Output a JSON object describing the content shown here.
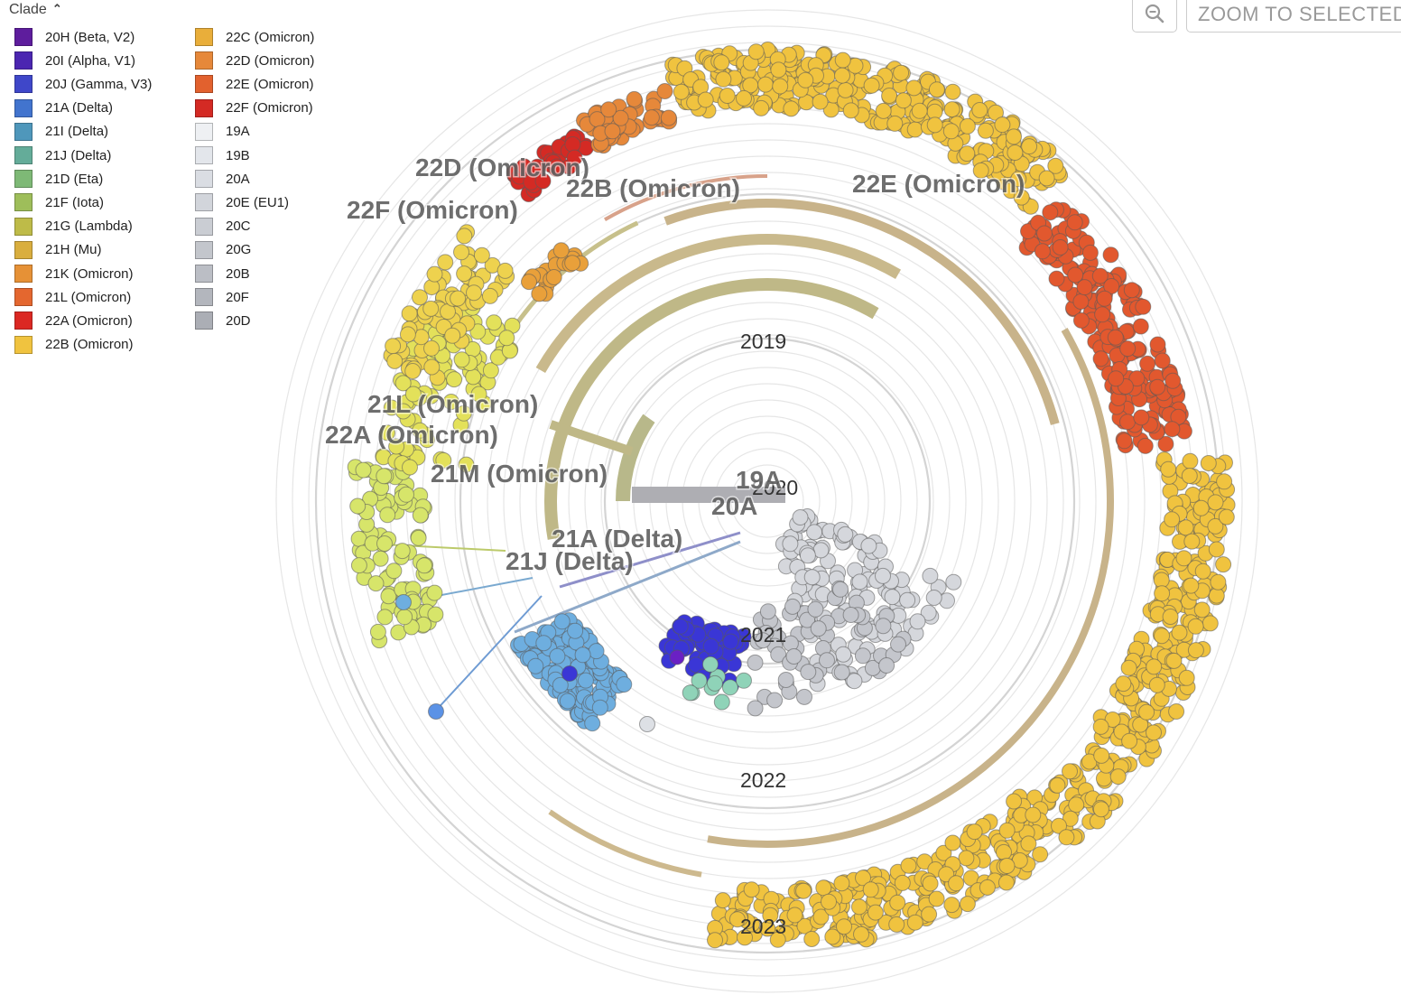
{
  "legend": {
    "title": "Clade",
    "columns": [
      [
        {
          "label": "20H (Beta, V2)",
          "color": "#5E1D9D"
        },
        {
          "label": "20I (Alpha, V1)",
          "color": "#4B26B1"
        },
        {
          "label": "20J (Gamma, V3)",
          "color": "#3F47C9"
        },
        {
          "label": "21A (Delta)",
          "color": "#4274CE"
        },
        {
          "label": "21I (Delta)",
          "color": "#4F97BB"
        },
        {
          "label": "21J (Delta)",
          "color": "#64AC99"
        },
        {
          "label": "21D (Eta)",
          "color": "#7EB976"
        },
        {
          "label": "21F (Iota)",
          "color": "#9EBE5A"
        },
        {
          "label": "21G (Lambda)",
          "color": "#BEBB48"
        },
        {
          "label": "21H (Mu)",
          "color": "#D9AE3E"
        },
        {
          "label": "21K (Omicron)",
          "color": "#E69136"
        },
        {
          "label": "21L (Omicron)",
          "color": "#E4672F"
        },
        {
          "label": "22A (Omicron)",
          "color": "#DB2823"
        },
        {
          "label": "22B (Omicron)",
          "color": "#F0C33F"
        }
      ],
      [
        {
          "label": "22C (Omicron)",
          "color": "#E9AE3A"
        },
        {
          "label": "22D (Omicron)",
          "color": "#E6883A"
        },
        {
          "label": "22E (Omicron)",
          "color": "#E2612E"
        },
        {
          "label": "22F (Omicron)",
          "color": "#D42A24"
        },
        {
          "label": "19A",
          "color": "#EEF0F3"
        },
        {
          "label": "19B",
          "color": "#E3E6EB"
        },
        {
          "label": "20A",
          "color": "#DADDE3"
        },
        {
          "label": "20E (EU1)",
          "color": "#D2D5DB"
        },
        {
          "label": "20C",
          "color": "#CACDD3"
        },
        {
          "label": "20G",
          "color": "#C3C6CC"
        },
        {
          "label": "20B",
          "color": "#BBBEC5"
        },
        {
          "label": "20F",
          "color": "#B3B6BD"
        },
        {
          "label": "20D",
          "color": "#ABAEB5"
        }
      ]
    ]
  },
  "toolbar": {
    "zoom_icon": "zoom-icon",
    "zoom_selected_label": "ZOOM TO SELECTED"
  },
  "tree": {
    "layout": "radial",
    "year_labels": [
      "2019",
      "2020",
      "2021",
      "2022",
      "2023"
    ],
    "clade_labels": [
      "22D (Omicron)",
      "22B (Omicron)",
      "22E (Omicron)",
      "22F (Omicron)",
      "21L (Omicron)",
      "22A (Omicron)",
      "21M (Omicron)",
      "19A",
      "20A",
      "21A (Delta)",
      "21J (Delta)"
    ]
  }
}
